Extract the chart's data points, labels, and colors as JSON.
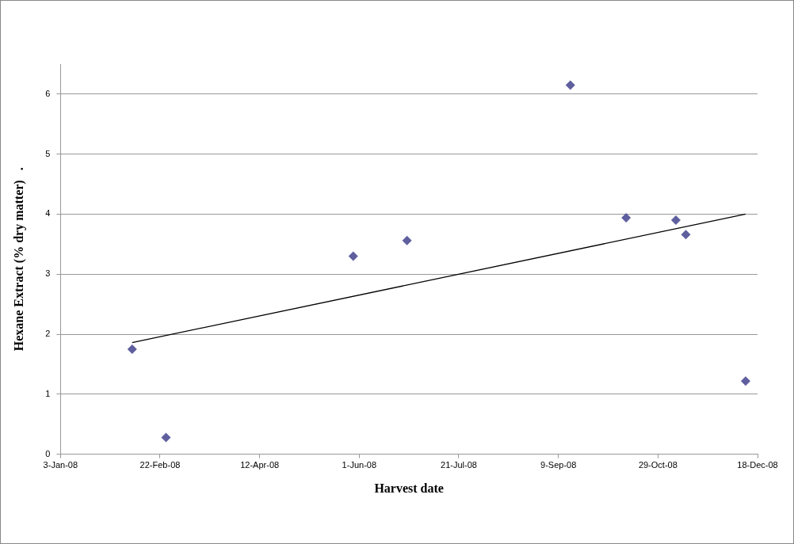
{
  "chart_data": {
    "type": "scatter",
    "xlabel": "Harvest date",
    "ylabel": "Hexane Extract (% dry matter)   .",
    "xlim": [
      "2008-01-03",
      "2008-12-18"
    ],
    "xticks": [
      {
        "value": "2008-01-03",
        "label": "3-Jan-08"
      },
      {
        "value": "2008-02-22",
        "label": "22-Feb-08"
      },
      {
        "value": "2008-04-12",
        "label": "12-Apr-08"
      },
      {
        "value": "2008-06-01",
        "label": "1-Jun-08"
      },
      {
        "value": "2008-07-21",
        "label": "21-Jul-08"
      },
      {
        "value": "2008-09-09",
        "label": "9-Sep-08"
      },
      {
        "value": "2008-10-29",
        "label": "29-Oct-08"
      },
      {
        "value": "2008-12-18",
        "label": "18-Dec-08"
      }
    ],
    "ylim": [
      0,
      6.5
    ],
    "yticks": [
      0,
      1,
      2,
      3,
      4,
      5,
      6
    ],
    "grid": "y",
    "legend": false,
    "series": [
      {
        "marker": "diamond",
        "color": "#5f5f9f",
        "x": [
          "2008-02-08",
          "2008-02-25",
          "2008-05-29",
          "2008-06-25",
          "2008-09-15",
          "2008-10-13",
          "2008-11-07",
          "2008-11-12",
          "2008-12-12"
        ],
        "values": [
          1.75,
          0.28,
          3.3,
          3.56,
          6.15,
          3.94,
          3.9,
          3.66,
          1.22
        ]
      },
      {
        "type": "line",
        "marker": "none",
        "line_style": "solid",
        "color": "#000000",
        "x": [
          "2008-02-08",
          "2008-12-12"
        ],
        "values": [
          1.86,
          4.0
        ]
      }
    ]
  }
}
